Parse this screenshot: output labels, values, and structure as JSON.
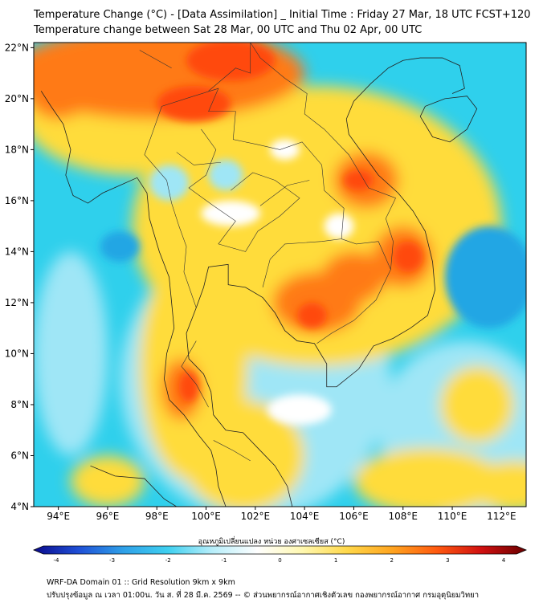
{
  "title_line1": "Temperature Change (°C) - [Data Assimilation] _ Initial Time : Friday 27 Mar, 18 UTC FCST+120",
  "title_line2": "Temperature change between Sat 28 Mar, 00 UTC and Thu 02 Apr, 00 UTC",
  "lat_labels": [
    "22°N",
    "20°N",
    "18°N",
    "16°N",
    "14°N",
    "12°N",
    "10°N",
    "8°N",
    "6°N",
    "4°N"
  ],
  "lon_labels": [
    "94°E",
    "96°E",
    "98°E",
    "100°E",
    "102°E",
    "104°E",
    "106°E",
    "108°E",
    "110°E",
    "112°E"
  ],
  "map_extent": {
    "lon": [
      93,
      113
    ],
    "lat": [
      4,
      22.2
    ]
  },
  "colorbar": {
    "title": "อุณหภูมิเปลี่ยนแปลง หน่วย องศาเซลเซียส (°C)",
    "ticks": [
      "-4",
      "-3",
      "-2",
      "-1",
      "0",
      "1",
      "2",
      "3",
      "4"
    ],
    "range": [
      -4,
      4
    ],
    "colors": [
      "#0a0a8c",
      "#1f4fd6",
      "#2fa0e8",
      "#3fd0f0",
      "#b8eefa",
      "#ffffff",
      "#fff8b0",
      "#ffd84a",
      "#ffa520",
      "#ff5a10",
      "#d01010",
      "#6a0000"
    ]
  },
  "footer_line1": "WRF-DA Domain 01 :: Grid Resolution 9km x 9km",
  "footer_line2": "ปรับปรุงข้อมูล ณ เวลา 01:00น. วัน ส. ที่ 28 มี.ค. 2569 -- © ส่วนพยากรณ์อากาศเชิงตัวเลข กองพยากรณ์อากาศ กรมอุตุนิยมวิทยา",
  "map_colors": {
    "ocean_base": "#2fd0ec",
    "land_base": "#ffdc3a",
    "hot": "#ff7a14",
    "very_hot": "#ff4a10",
    "cool": "#9fe6f6",
    "white": "#ffffff",
    "blue_spot": "#23a6e4"
  }
}
